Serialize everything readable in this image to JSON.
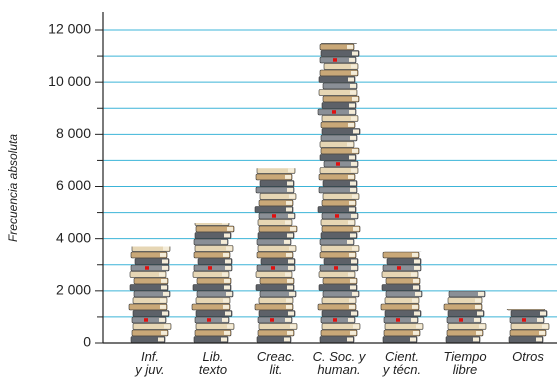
{
  "chart_data": {
    "type": "pictogram",
    "y_label": "Frecuencia absoluta",
    "categories": [
      "Inf.\ny juv.",
      "Lib.\ntexto",
      "Creac.\nlit.",
      "C. Soc. y\nhuman.",
      "Cient.\ny técn.",
      "Tiempo\nlibre",
      "Otros"
    ],
    "values": [
      3700,
      4600,
      6700,
      11500,
      3500,
      2000,
      1300
    ],
    "ylim": [
      0,
      12000
    ],
    "yticks": [
      0,
      {
        "value": 2000,
        "label": "2 000"
      },
      {
        "value": 4000,
        "label": "4 000"
      },
      {
        "value": 6000,
        "label": "6 000"
      },
      {
        "value": 8000,
        "label": "8 000"
      },
      {
        "value": 10000,
        "label": "10 000"
      },
      {
        "value": 12000,
        "label": "12 000"
      }
    ],
    "minor_yticks": [
      1000,
      3000,
      5000,
      7000,
      9000,
      11000
    ],
    "grid": true,
    "grid_color": "#3cb4d8"
  }
}
